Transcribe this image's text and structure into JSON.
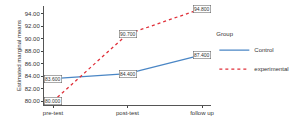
{
  "chart_data": {
    "type": "line",
    "categories": [
      "pre-test",
      "post-test",
      "follow up"
    ],
    "y_label": "Estimated marginal means",
    "legend_title": "Group",
    "legend": "right",
    "grid": false,
    "data_labels": true,
    "ylim": [
      79.4,
      95.2
    ],
    "yticks": [
      {
        "value": 80,
        "label": "80.00"
      },
      {
        "value": 82,
        "label": "82.00"
      },
      {
        "value": 84,
        "label": "84.00"
      },
      {
        "value": 86,
        "label": "86.00"
      },
      {
        "value": 88,
        "label": "88.00"
      },
      {
        "value": 90,
        "label": "90.00"
      },
      {
        "value": 92,
        "label": "92.00"
      },
      {
        "value": 94,
        "label": "94.00"
      }
    ],
    "series": [
      {
        "name": "Control",
        "color": "#4a86c5",
        "line_style": "solid",
        "values": [
          83.6,
          84.4,
          87.4
        ],
        "value_labels": [
          "83.600",
          "84.400",
          "87.400"
        ]
      },
      {
        "name": "experimental",
        "color": "#e0303a",
        "line_style": "dot",
        "values": [
          80.0,
          90.7,
          94.8
        ],
        "value_labels": [
          "80.000",
          "90.700",
          "94.800"
        ]
      }
    ]
  }
}
